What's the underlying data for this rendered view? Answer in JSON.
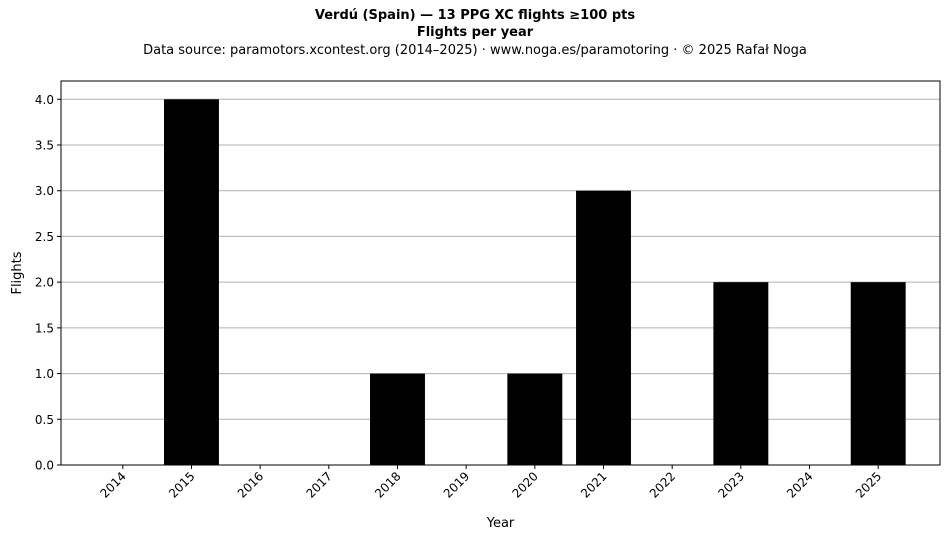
{
  "chart_data": {
    "type": "bar",
    "title": "Verdú (Spain)  —  13 PPG XC flights ≥100 pts",
    "subtitle": "Flights per year",
    "source": "Data source: paramotors.xcontest.org (2014–2025)  ·  www.noga.es/paramotoring  ·  © 2025 Rafał Noga",
    "xlabel": "Year",
    "ylabel": "Flights",
    "categories": [
      "2014",
      "2015",
      "2016",
      "2017",
      "2018",
      "2019",
      "2020",
      "2021",
      "2022",
      "2023",
      "2024",
      "2025"
    ],
    "values": [
      0,
      4,
      0,
      0,
      1,
      0,
      1,
      3,
      0,
      2,
      0,
      2
    ],
    "ylim": [
      0,
      4.2
    ],
    "yticks": [
      "0.0",
      "0.5",
      "1.0",
      "1.5",
      "2.0",
      "2.5",
      "3.0",
      "3.5",
      "4.0"
    ],
    "grid": "horizontal",
    "bar_color": "#000000",
    "grid_color": "#b0b0b0"
  }
}
